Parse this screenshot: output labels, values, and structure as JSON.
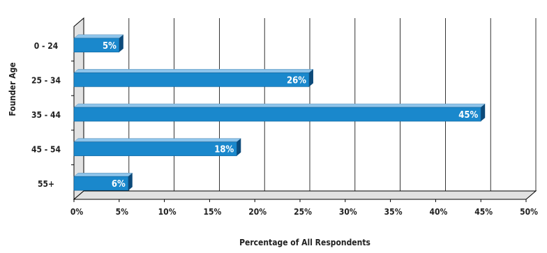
{
  "chart_data": {
    "type": "bar",
    "orientation": "horizontal",
    "categories": [
      "0 - 24",
      "25 - 34",
      "35 - 44",
      "45 - 54",
      "55+"
    ],
    "values": [
      5,
      26,
      45,
      18,
      6
    ],
    "data_labels": [
      "5%",
      "26%",
      "45%",
      "18%",
      "6%"
    ],
    "title": "",
    "xlabel": "Percentage of All Respondents",
    "ylabel": "Founder Age",
    "xlim": [
      0,
      50
    ],
    "x_ticks": [
      "0%",
      "5%",
      "10%",
      "15%",
      "20%",
      "25%",
      "30%",
      "35%",
      "40%",
      "45%",
      "50%"
    ],
    "grid": true,
    "legend": "none",
    "colors": {
      "bar_front": "#1a88cc",
      "bar_top": "#8ec4ea",
      "bar_side": "#0c4a7a",
      "grid": "#000000",
      "wall": "#e2e2e2"
    }
  }
}
